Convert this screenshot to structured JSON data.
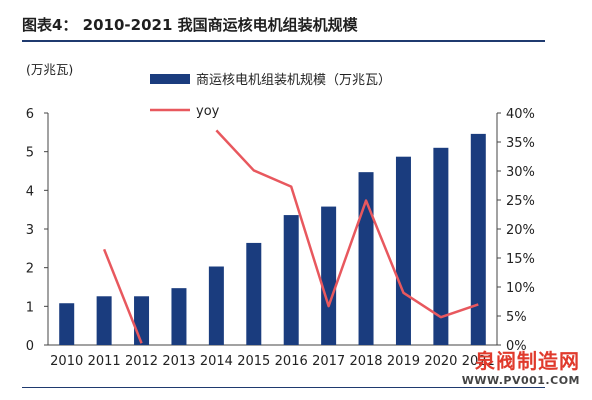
{
  "header": {
    "title": "图表4：  2010-2021 我国商运核电机组装机规模"
  },
  "watermark": {
    "name": "泉阀制造网",
    "url": "WWW.PV001.COM"
  },
  "chart_data": {
    "type": "bar",
    "categories": [
      "2010",
      "2011",
      "2012",
      "2013",
      "2014",
      "2015",
      "2016",
      "2017",
      "2018",
      "2019",
      "2020",
      "2021"
    ],
    "y_unit_label": "(万兆瓦)",
    "ylim": [
      0,
      6
    ],
    "yticks": [
      "0",
      "1",
      "2",
      "3",
      "4",
      "5",
      "6"
    ],
    "y2lim": [
      0,
      40
    ],
    "y2ticks": [
      "0%",
      "5%",
      "10%",
      "15%",
      "20%",
      "25%",
      "30%",
      "35%",
      "40%"
    ],
    "series": [
      {
        "name": "商运核电机组装机规模（万兆瓦）",
        "type": "bar",
        "axis": "left",
        "color": "#1a3c7e",
        "values": [
          1.08,
          1.26,
          1.26,
          1.47,
          2.03,
          2.64,
          3.36,
          3.58,
          4.47,
          4.87,
          5.1,
          5.46
        ]
      },
      {
        "name": "yoy",
        "type": "line",
        "axis": "right",
        "color": "#e8585e",
        "values": [
          null,
          16.5,
          0.3,
          null,
          37.0,
          30.1,
          27.3,
          6.7,
          24.9,
          9.0,
          4.8,
          7.0
        ]
      }
    ],
    "legend_position": "top"
  }
}
